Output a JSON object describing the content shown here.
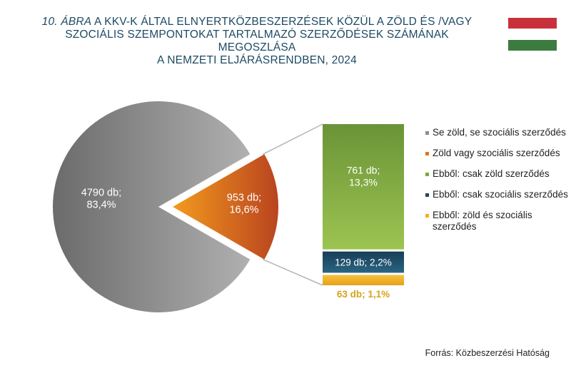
{
  "title": {
    "figure_label": "10. ÁBRA",
    "line1_rest": " A KKV-K ÁLTAL ELNYERTKÖZBESZERZÉSEK KÖZÜL A ZÖLD ÉS /VAGY",
    "line2": "SZOCIÁLIS SZEMPONTOKAT TARTALMAZÓ SZERZŐDÉSEK SZÁMÁNAK MEGOSZLÁSA",
    "line3": "A NEMZETI ELJÁRÁSRENDBEN, 2024"
  },
  "flag": {
    "colors": [
      "#c8313b",
      "#ffffff",
      "#3c7b3f"
    ],
    "icon": "hungarian-flag"
  },
  "source": "Forrás: Közbeszerzési Hatóság",
  "colors": {
    "gray": "#8c8c8c",
    "orange": "#e1751c",
    "green": "#7aa83f",
    "navy": "#1d4a63",
    "yellow": "#f0b318"
  },
  "chart_data": {
    "type": "pie",
    "pie": [
      {
        "name": "Se zöld, se szociális szerződés",
        "value": 4790,
        "percent": 83.4,
        "label": "4790 db;\n83,4%"
      },
      {
        "name": "Zöld vagy szociális szerződés",
        "value": 953,
        "percent": 16.6,
        "label": "953 db;\n16,6%"
      }
    ],
    "breakdown_bar": [
      {
        "name": "Ebből: csak zöld szerződés",
        "value": 761,
        "percent": 13.3,
        "label": "761 db;\n13,3%"
      },
      {
        "name": "Ebből: csak szociális szerződés",
        "value": 129,
        "percent": 2.2,
        "label": "129 db; 2,2%"
      },
      {
        "name": "Ebből: zöld és szociális szerződés",
        "value": 63,
        "percent": 1.1,
        "label": "63 db; 1,1%"
      }
    ],
    "legend": [
      {
        "label": "Se zöld, se szociális szerződés",
        "color": "#8c8c8c"
      },
      {
        "label": "Zöld vagy szociális szerződés",
        "color": "#e1751c"
      },
      {
        "label": "Ebből: csak zöld szerződés",
        "color": "#7aa83f"
      },
      {
        "label": "Ebből: csak szociális szerződés",
        "color": "#1d4a63"
      },
      {
        "label": "Ebből: zöld és szociális szerződés",
        "color": "#f0b318"
      }
    ],
    "legend_position": "right"
  }
}
